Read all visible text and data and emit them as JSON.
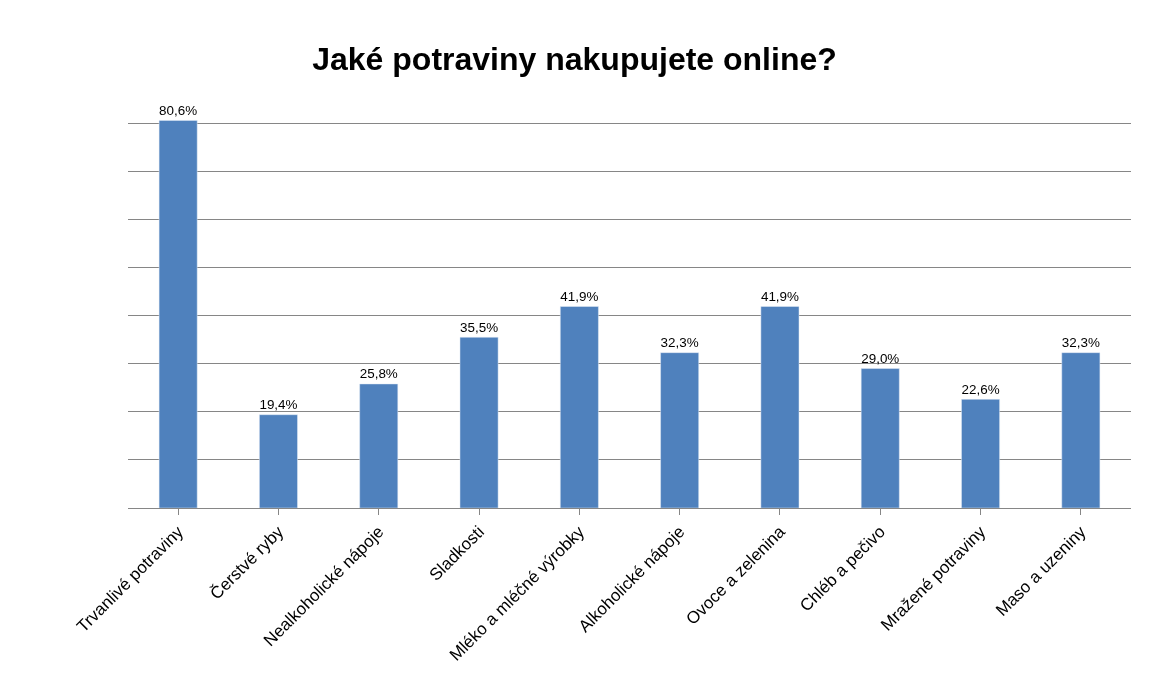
{
  "chart_data": {
    "type": "bar",
    "title": "Jaké potraviny nakupujete online?",
    "categories": [
      "Trvanlivé potraviny",
      "Čerstvé ryby",
      "Nealkoholické nápoje",
      "Sladkosti",
      "Mléko a mléčné výrobky",
      "Alkoholické nápoje",
      "Ovoce a zelenina",
      "Chléb a pečivo",
      "Mražené potraviny",
      "Maso a uzeniny"
    ],
    "values": [
      80.6,
      19.4,
      25.8,
      35.5,
      41.9,
      32.3,
      41.9,
      29.0,
      22.6,
      32.3
    ],
    "value_labels": [
      "80,6%",
      "19,4%",
      "25,8%",
      "35,5%",
      "41,9%",
      "32,3%",
      "41,9%",
      "29,0%",
      "22,6%",
      "32,3%"
    ],
    "color": "#4f81bd",
    "grid": "y",
    "tick_labels": "x"
  }
}
